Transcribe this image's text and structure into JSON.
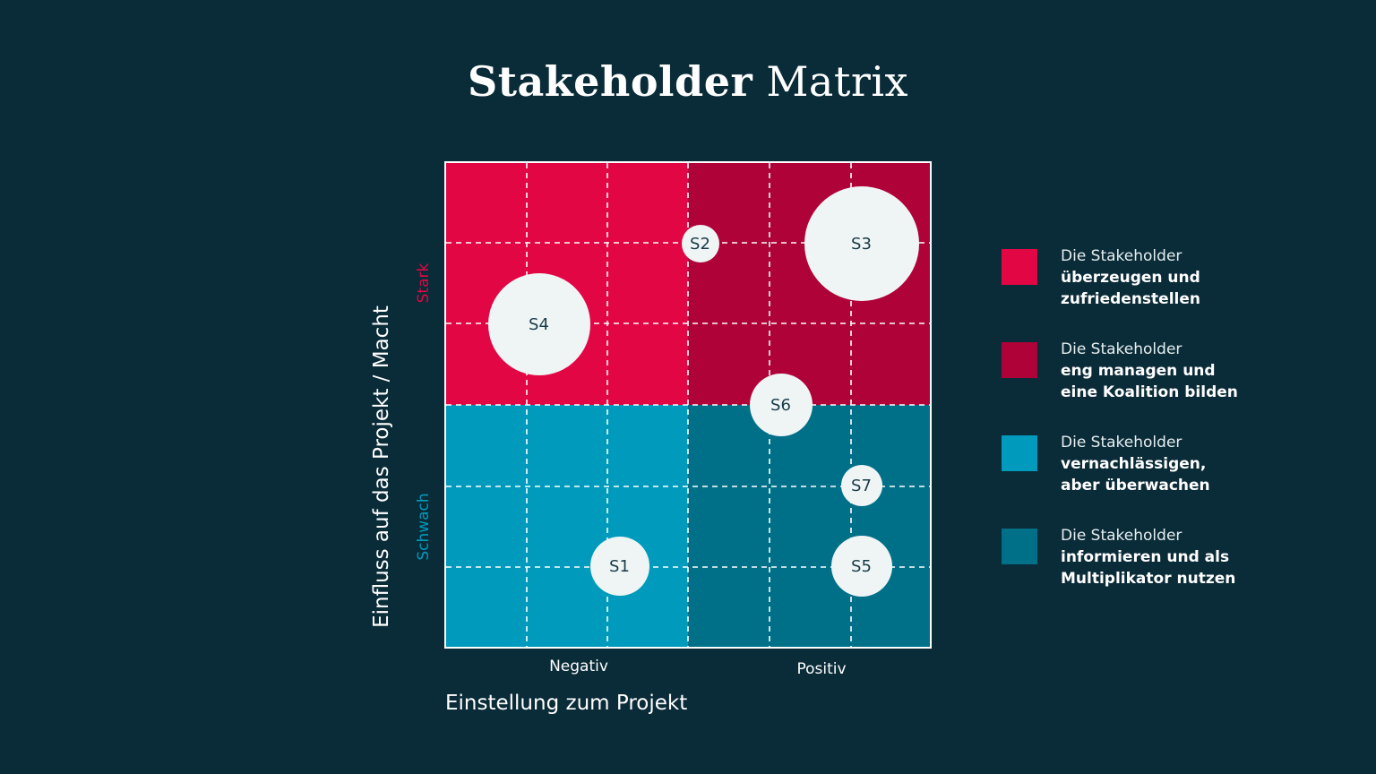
{
  "title": {
    "bold": "Stakeholder",
    "light": "Matrix"
  },
  "axes": {
    "y_label": "Einfluss auf das Projekt / Macht",
    "y_ticks": {
      "strong": "Stark",
      "weak": "Schwach"
    },
    "x_label": "Einstellung zum Projekt",
    "x_ticks": {
      "negative": "Negativ",
      "positive": "Positiv"
    }
  },
  "colors": {
    "background": "#0a2b38",
    "top_left": "#e20645",
    "top_right": "#af0238",
    "bottom_left": "#009bbc",
    "bottom_right": "#007088",
    "bubble": "#eff5f5"
  },
  "stakeholders": [
    {
      "label": "S1",
      "attitude": 2.15,
      "influence": 1.0,
      "size": 66
    },
    {
      "label": "S2",
      "attitude": 3.15,
      "influence": 5.0,
      "size": 42
    },
    {
      "label": "S3",
      "attitude": 5.15,
      "influence": 5.0,
      "size": 128
    },
    {
      "label": "S4",
      "attitude": 1.15,
      "influence": 4.0,
      "size": 114
    },
    {
      "label": "S5",
      "attitude": 5.15,
      "influence": 1.0,
      "size": 68
    },
    {
      "label": "S6",
      "attitude": 4.15,
      "influence": 3.0,
      "size": 70
    },
    {
      "label": "S7",
      "attitude": 5.15,
      "influence": 2.0,
      "size": 46
    }
  ],
  "legend": [
    {
      "line1": "Die Stakeholder",
      "line2": "überzeugen und",
      "line3": "zufriedenstellen",
      "color": "#e20645"
    },
    {
      "line1": "Die Stakeholder",
      "line2": "eng managen und",
      "line3": "eine Koalition bilden",
      "color": "#af0238"
    },
    {
      "line1": "Die Stakeholder",
      "line2": "vernachlässigen,",
      "line3": "aber überwachen",
      "color": "#009bbc"
    },
    {
      "line1": "Die Stakeholder",
      "line2": "informieren und als",
      "line3": "Multiplikator nutzen",
      "color": "#007088"
    }
  ]
}
